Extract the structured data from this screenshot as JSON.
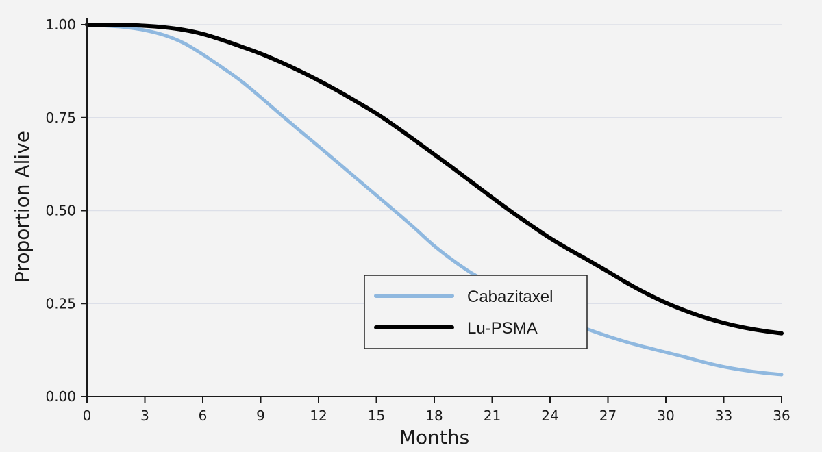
{
  "chart_data": {
    "type": "line",
    "xlabel": "Months",
    "ylabel": "Proportion Alive",
    "xlim": [
      0,
      36
    ],
    "ylim": [
      0,
      1
    ],
    "x_ticks": [
      0,
      3,
      6,
      9,
      12,
      15,
      18,
      21,
      24,
      27,
      30,
      33,
      36
    ],
    "x_tick_labels": [
      "0",
      "3",
      "6",
      "9",
      "12",
      "15",
      "18",
      "21",
      "24",
      "27",
      "30",
      "33",
      "36"
    ],
    "y_ticks": [
      0,
      0.25,
      0.5,
      0.75,
      1.0
    ],
    "y_tick_labels": [
      "0.00",
      "0.25",
      "0.50",
      "0.75",
      "1.00"
    ],
    "grid": "horizontal",
    "legend_position": "center-right",
    "series": [
      {
        "name": "Cabazitaxel",
        "color": "#8fb8df",
        "x": [
          0,
          1,
          2,
          3,
          4,
          5,
          6,
          7,
          8,
          9,
          10,
          11,
          12,
          13,
          14,
          15,
          16,
          17,
          18,
          19,
          20,
          21,
          22,
          23,
          24,
          25,
          26,
          27,
          28,
          29,
          30,
          31,
          32,
          33,
          34,
          35,
          36
        ],
        "y": [
          1.0,
          0.997,
          0.993,
          0.985,
          0.972,
          0.951,
          0.92,
          0.885,
          0.848,
          0.805,
          0.76,
          0.716,
          0.673,
          0.629,
          0.585,
          0.541,
          0.497,
          0.452,
          0.405,
          0.365,
          0.33,
          0.303,
          0.278,
          0.254,
          0.227,
          0.2,
          0.18,
          0.162,
          0.146,
          0.132,
          0.119,
          0.106,
          0.092,
          0.08,
          0.071,
          0.064,
          0.059
        ]
      },
      {
        "name": "Lu-PSMA",
        "color": "#000000",
        "x": [
          0,
          1,
          2,
          3,
          4,
          5,
          6,
          7,
          8,
          9,
          10,
          11,
          12,
          13,
          14,
          15,
          16,
          17,
          18,
          19,
          20,
          21,
          22,
          23,
          24,
          25,
          26,
          27,
          28,
          29,
          30,
          31,
          32,
          33,
          34,
          35,
          36
        ],
        "y": [
          1.0,
          1.0,
          0.999,
          0.997,
          0.993,
          0.986,
          0.975,
          0.959,
          0.941,
          0.922,
          0.9,
          0.876,
          0.85,
          0.822,
          0.792,
          0.761,
          0.726,
          0.689,
          0.651,
          0.613,
          0.574,
          0.535,
          0.497,
          0.461,
          0.426,
          0.395,
          0.366,
          0.336,
          0.305,
          0.277,
          0.252,
          0.231,
          0.213,
          0.198,
          0.186,
          0.177,
          0.17
        ]
      }
    ]
  }
}
